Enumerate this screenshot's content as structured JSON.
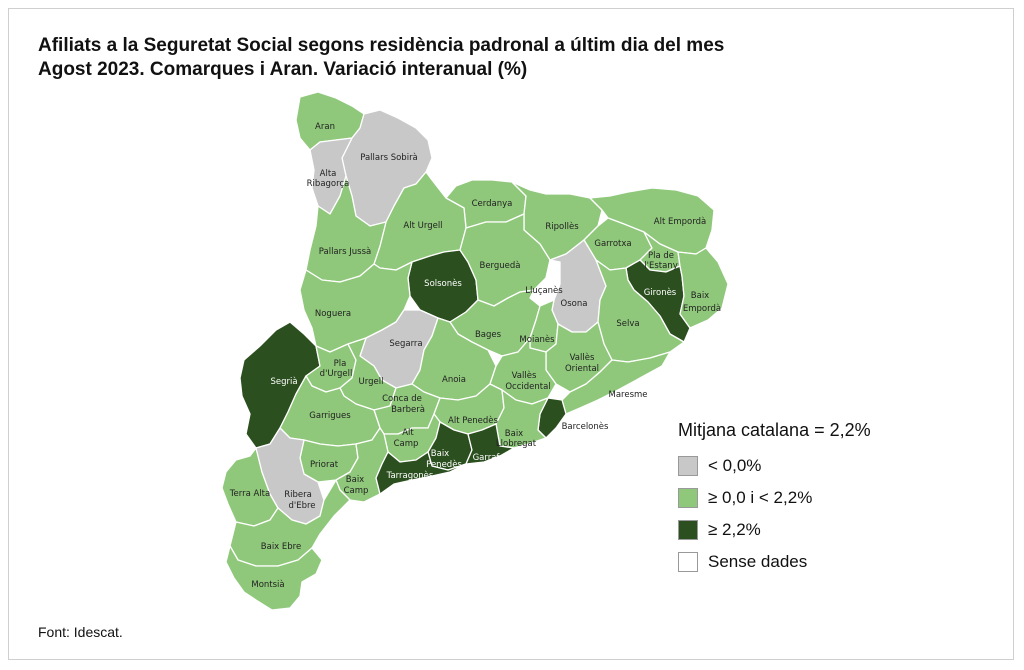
{
  "title": {
    "line1": "Afiliats a la Seguretat Social segons residència padronal a últim dia del mes",
    "line2": "Agost 2023. Comarques i Aran. Variació interanual (%)"
  },
  "source": "Font: Idescat.",
  "colors": {
    "negative": "#c8c8c8",
    "low": "#8fc87a",
    "high": "#2c4f1f",
    "nodata": "#ffffff"
  },
  "legend": {
    "title": "Mitjana catalana = 2,2%",
    "items": [
      {
        "label": "< 0,0%",
        "category": "negative"
      },
      {
        "label": "≥ 0,0 i < 2,2%",
        "category": "low"
      },
      {
        "label": "≥ 2,2%",
        "category": "high"
      },
      {
        "label": "Sense dades",
        "category": "nodata"
      }
    ]
  },
  "regions": [
    {
      "name": "Aran",
      "category": "low"
    },
    {
      "name": "Pallars Sobirà",
      "category": "negative"
    },
    {
      "name": "Alta Ribagorça",
      "category": "negative"
    },
    {
      "name": "Cerdanya",
      "category": "low"
    },
    {
      "name": "Alt Urgell",
      "category": "low"
    },
    {
      "name": "Ripollès",
      "category": "low"
    },
    {
      "name": "Alt Empordà",
      "category": "low"
    },
    {
      "name": "Pallars Jussà",
      "category": "low"
    },
    {
      "name": "Garrotxa",
      "category": "low"
    },
    {
      "name": "Pla de l'Estany",
      "category": "low"
    },
    {
      "name": "Solsonès",
      "category": "high"
    },
    {
      "name": "Berguedà",
      "category": "low"
    },
    {
      "name": "Lluçanès",
      "category": "nodata"
    },
    {
      "name": "Osona",
      "category": "negative"
    },
    {
      "name": "Gironès",
      "category": "high"
    },
    {
      "name": "Baix Empordà",
      "category": "low"
    },
    {
      "name": "Noguera",
      "category": "low"
    },
    {
      "name": "Selva",
      "category": "low"
    },
    {
      "name": "Bages",
      "category": "low"
    },
    {
      "name": "Moianès",
      "category": "low"
    },
    {
      "name": "Segarra",
      "category": "negative"
    },
    {
      "name": "Segrià",
      "category": "high"
    },
    {
      "name": "Pla d'Urgell",
      "category": "low"
    },
    {
      "name": "Urgell",
      "category": "low"
    },
    {
      "name": "Anoia",
      "category": "low"
    },
    {
      "name": "Vallès Oriental",
      "category": "low"
    },
    {
      "name": "Vallès Occidental",
      "category": "low"
    },
    {
      "name": "Maresme",
      "category": "low"
    },
    {
      "name": "Conca de Barberà",
      "category": "low"
    },
    {
      "name": "Garrigues",
      "category": "low"
    },
    {
      "name": "Alt Penedès",
      "category": "low"
    },
    {
      "name": "Barcelonès",
      "category": "high"
    },
    {
      "name": "Alt Camp",
      "category": "low"
    },
    {
      "name": "Baix Llobregat",
      "category": "low"
    },
    {
      "name": "Baix Penedès",
      "category": "high"
    },
    {
      "name": "Garraf",
      "category": "high"
    },
    {
      "name": "Priorat",
      "category": "low"
    },
    {
      "name": "Baix Camp",
      "category": "low"
    },
    {
      "name": "Tarragonès",
      "category": "high"
    },
    {
      "name": "Terra Alta",
      "category": "low"
    },
    {
      "name": "Ribera d'Ebre",
      "category": "negative"
    },
    {
      "name": "Baix Ebre",
      "category": "low"
    },
    {
      "name": "Montsià",
      "category": "low"
    }
  ]
}
